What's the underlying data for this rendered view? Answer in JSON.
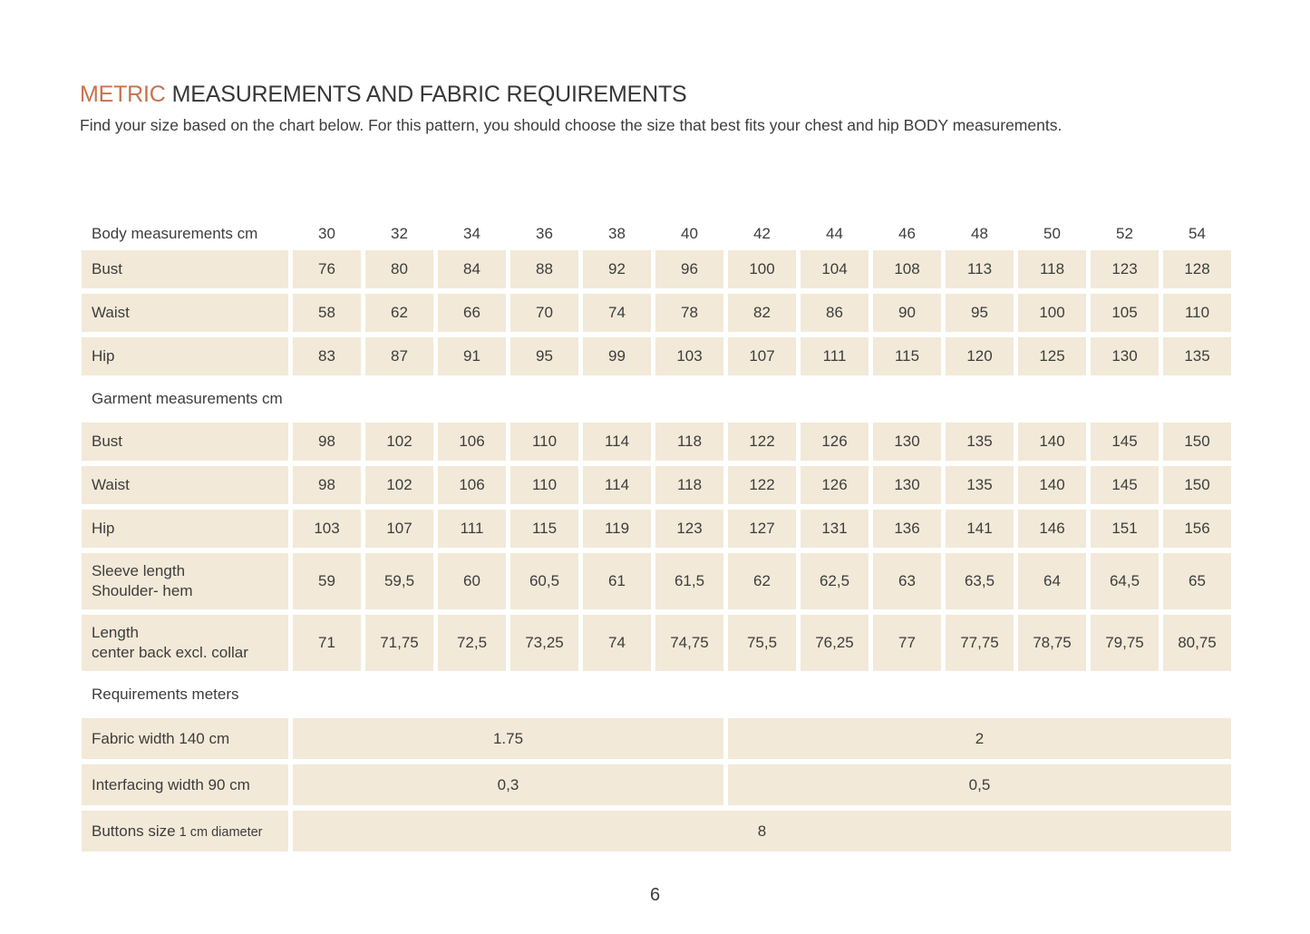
{
  "page": {
    "title_accent": "METRIC",
    "title_rest": "MEASUREMENTS AND FABRIC REQUIREMENTS",
    "subtitle": "Find your size based on the chart below. For this pattern, you should choose the size that best fits your chest and hip BODY measurements.",
    "page_number": "6"
  },
  "colors": {
    "accent": "#c9714d",
    "cell_background": "#f2e9d8",
    "text": "#3b3b3b"
  },
  "table": {
    "size_header": {
      "label": "Body measurements cm",
      "sizes": [
        "30",
        "32",
        "34",
        "36",
        "38",
        "40",
        "42",
        "44",
        "46",
        "48",
        "50",
        "52",
        "54"
      ]
    },
    "body_rows": [
      {
        "label": "Bust",
        "values": [
          "76",
          "80",
          "84",
          "88",
          "92",
          "96",
          "100",
          "104",
          "108",
          "113",
          "118",
          "123",
          "128"
        ]
      },
      {
        "label": "Waist",
        "values": [
          "58",
          "62",
          "66",
          "70",
          "74",
          "78",
          "82",
          "86",
          "90",
          "95",
          "100",
          "105",
          "110"
        ]
      },
      {
        "label": "Hip",
        "values": [
          "83",
          "87",
          "91",
          "95",
          "99",
          "103",
          "107",
          "111",
          "115",
          "120",
          "125",
          "130",
          "135"
        ]
      }
    ],
    "garment_section_label": "Garment measurements cm",
    "garment_rows": [
      {
        "label": "Bust",
        "values": [
          "98",
          "102",
          "106",
          "110",
          "114",
          "118",
          "122",
          "126",
          "130",
          "135",
          "140",
          "145",
          "150"
        ]
      },
      {
        "label": "Waist",
        "values": [
          "98",
          "102",
          "106",
          "110",
          "114",
          "118",
          "122",
          "126",
          "130",
          "135",
          "140",
          "145",
          "150"
        ]
      },
      {
        "label": "Hip",
        "values": [
          "103",
          "107",
          "111",
          "115",
          "119",
          "123",
          "127",
          "131",
          "136",
          "141",
          "146",
          "151",
          "156"
        ]
      },
      {
        "label": "Sleeve length",
        "sublabel": "Shoulder- hem",
        "values": [
          "59",
          "59,5",
          "60",
          "60,5",
          "61",
          "61,5",
          "62",
          "62,5",
          "63",
          "63,5",
          "64",
          "64,5",
          "65"
        ]
      },
      {
        "label": "Length",
        "sublabel": "center back excl. collar",
        "values": [
          "71",
          "71,75",
          "72,5",
          "73,25",
          "74",
          "74,75",
          "75,5",
          "76,25",
          "77",
          "77,75",
          "78,75",
          "79,75",
          "80,75"
        ]
      }
    ],
    "requirements_section_label": "Requirements meters",
    "requirement_rows": [
      {
        "label": "Fabric width 140 cm",
        "cells": [
          {
            "value": "1.75",
            "span": 6
          },
          {
            "value": "2",
            "span": 7
          }
        ]
      },
      {
        "label": "Interfacing width 90 cm",
        "cells": [
          {
            "value": "0,3",
            "span": 6
          },
          {
            "value": "0,5",
            "span": 7
          }
        ]
      },
      {
        "label": "Buttons size",
        "label_detail": "1 cm diameter",
        "cells": [
          {
            "value": "8",
            "span": 13
          }
        ]
      }
    ]
  }
}
